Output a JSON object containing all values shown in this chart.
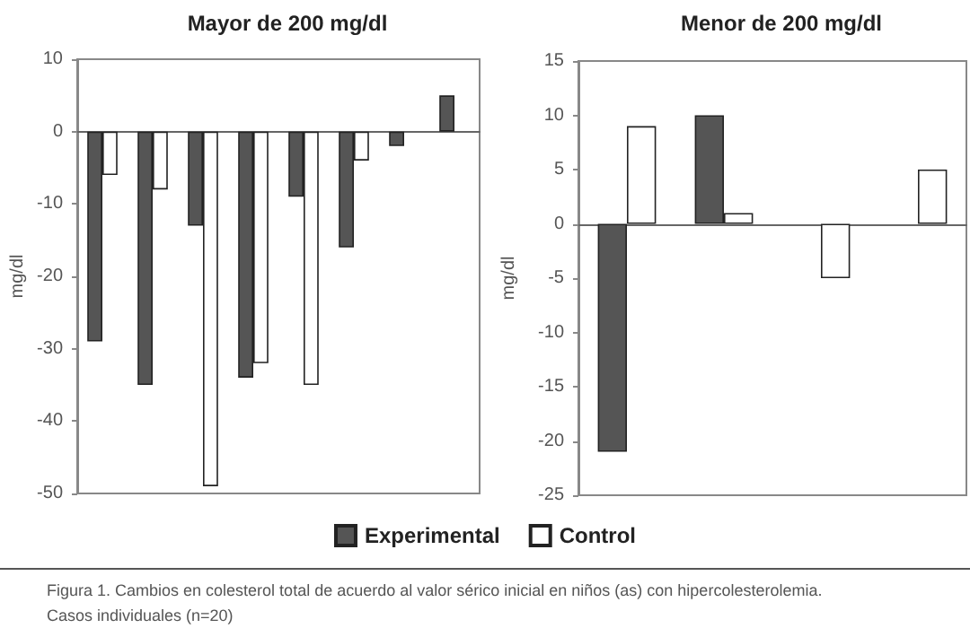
{
  "chart_data": [
    {
      "type": "bar",
      "title": "Mayor de 200 mg/dl",
      "ylabel": "mg/dl",
      "categories": [
        null,
        null,
        null,
        null,
        null,
        null,
        null,
        null
      ],
      "series": [
        {
          "name": "Experimental",
          "color": "#555555",
          "values": [
            -29,
            -35,
            -13,
            -34,
            -9,
            -16,
            -2,
            5
          ]
        },
        {
          "name": "Control",
          "color": "#ffffff",
          "values": [
            -6,
            -8,
            -49,
            -32,
            -35,
            -4,
            null,
            null
          ]
        }
      ],
      "ylim": [
        -50,
        10
      ],
      "yticks": [
        -50,
        -40,
        -30,
        -20,
        -10,
        0,
        10
      ],
      "legend": "bottom",
      "annotations": [
        "Figura 1. Cambios en colesterol total de acuerdo al valor sérico inicial en niños (as) con hipercolesterolemia.\nCasos individuales (n=20)"
      ]
    },
    {
      "type": "bar",
      "title": "Menor de 200 mg/dl",
      "ylabel": "mg/dl",
      "categories": [
        null,
        null,
        null,
        null
      ],
      "series": [
        {
          "color": "#555555",
          "values": [
            -21,
            10,
            null,
            null
          ]
        },
        {
          "color": "#ffffff",
          "values": [
            9,
            1,
            -5,
            5
          ]
        }
      ],
      "ylim": [
        -25,
        15
      ],
      "yticks": [
        -25,
        -20,
        -15,
        -10,
        -5,
        0,
        5,
        10,
        15
      ]
    }
  ]
}
